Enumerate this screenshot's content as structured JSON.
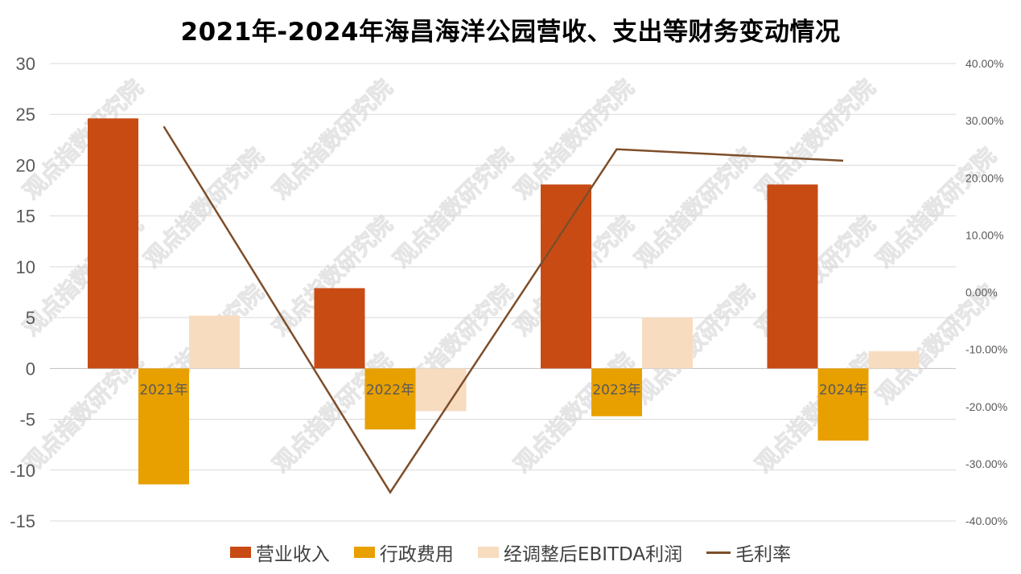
{
  "chart_data": {
    "type": "bar",
    "title": "2021年-2024年海昌海洋公园营收、支出等财务变动情况",
    "categories": [
      "2021年",
      "2022年",
      "2023年",
      "2024年"
    ],
    "series": [
      {
        "name": "营业收入",
        "kind": "bar",
        "axis": "left",
        "color": "#c84b14",
        "values": [
          24.6,
          7.9,
          18.1,
          18.1
        ]
      },
      {
        "name": "行政费用",
        "kind": "bar",
        "axis": "left",
        "color": "#e8a000",
        "values": [
          -11.4,
          -6.0,
          -4.7,
          -7.1
        ]
      },
      {
        "name": "经调整后EBITDA利润",
        "kind": "bar",
        "axis": "left",
        "color": "#f7dcc0",
        "values": [
          5.2,
          -4.2,
          5.0,
          1.7
        ]
      },
      {
        "name": "毛利率",
        "kind": "line",
        "axis": "right",
        "color": "#7d4e2a",
        "values": [
          0.29,
          -0.35,
          0.25,
          0.23
        ]
      }
    ],
    "y_left": {
      "min": -15,
      "max": 30,
      "step": 5,
      "ticks": [
        "30",
        "25",
        "20",
        "15",
        "10",
        "5",
        "0",
        "-5",
        "-10",
        "-15"
      ]
    },
    "y_right": {
      "min": -0.4,
      "max": 0.4,
      "step": 0.1,
      "ticks": [
        "40.00%",
        "30.00%",
        "20.00%",
        "10.00%",
        "0.00%",
        "-10.00%",
        "-20.00%",
        "-30.00%",
        "-40.00%"
      ]
    },
    "grid": true,
    "legend_position": "bottom",
    "watermark": "观点指数研究院"
  }
}
